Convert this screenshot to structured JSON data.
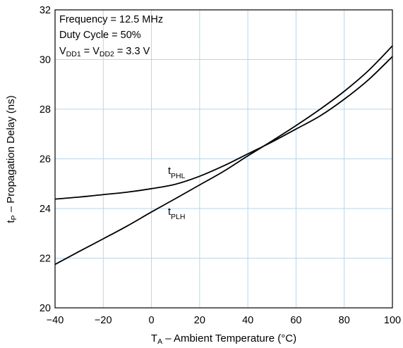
{
  "chart_data": {
    "type": "line",
    "xlabel": {
      "main": "T",
      "sub": "A",
      "rest": " – Ambient Temperature (°C)"
    },
    "ylabel": {
      "main": "t",
      "sub": "P",
      "rest": " – Propagation Delay (ns)"
    },
    "xlim": [
      -40,
      100
    ],
    "ylim": [
      20,
      32
    ],
    "xticks": [
      -40,
      -20,
      0,
      20,
      40,
      60,
      80,
      100
    ],
    "yticks": [
      20,
      22,
      24,
      26,
      28,
      30,
      32
    ],
    "grid": true,
    "x_tick_labels": [
      "−40",
      "−20",
      "0",
      "20",
      "40",
      "60",
      "80",
      "100"
    ],
    "y_tick_labels": [
      "20",
      "22",
      "24",
      "26",
      "28",
      "30",
      "32"
    ],
    "annotations": [
      {
        "text": "Frequency = 12.5 MHz"
      },
      {
        "text": "Duty Cycle = 50%"
      },
      {
        "parts": [
          {
            "t": "V"
          },
          {
            "t": "DD1",
            "sub": true
          },
          {
            "t": " = V"
          },
          {
            "t": "DD2",
            "sub": true
          },
          {
            "t": " = 3.3 V"
          }
        ]
      }
    ],
    "series": [
      {
        "name": {
          "main": "t",
          "sub": "PHL"
        },
        "x": [
          -40,
          -30,
          -20,
          -10,
          0,
          10,
          20,
          30,
          40,
          50,
          60,
          70,
          80,
          90,
          100
        ],
        "y": [
          24.38,
          24.46,
          24.56,
          24.66,
          24.8,
          24.98,
          25.3,
          25.72,
          26.2,
          26.68,
          27.2,
          27.73,
          28.4,
          29.18,
          30.12
        ]
      },
      {
        "name": {
          "main": "t",
          "sub": "PLH"
        },
        "x": [
          -40,
          -30,
          -20,
          -10,
          0,
          10,
          20,
          30,
          40,
          50,
          60,
          70,
          80,
          90,
          100
        ],
        "y": [
          21.75,
          22.27,
          22.78,
          23.3,
          23.86,
          24.4,
          24.95,
          25.5,
          26.12,
          26.72,
          27.34,
          28.0,
          28.72,
          29.55,
          30.55
        ]
      }
    ]
  }
}
